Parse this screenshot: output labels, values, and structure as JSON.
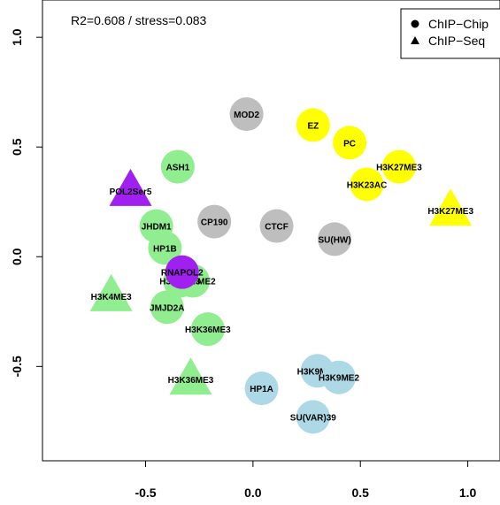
{
  "chart_data": {
    "type": "scatter",
    "title": "",
    "xlabel": "",
    "ylabel": "",
    "xlim": [
      -0.98,
      1.15
    ],
    "ylim": [
      -0.93,
      1.17
    ],
    "x_ticks": [
      "-0.5",
      "0.0",
      "0.5",
      "1.0"
    ],
    "x_tick_values": [
      -0.5,
      0.0,
      0.5,
      1.0
    ],
    "y_ticks": [
      "-0.5",
      "0.0",
      "0.5",
      "1.0"
    ],
    "y_tick_values": [
      -0.5,
      0.0,
      0.5,
      1.0
    ],
    "annotation": "R2=0.608 / stress=0.083",
    "legend": {
      "placement": "top-right",
      "entries": [
        {
          "label": "ChIP−Chip",
          "shape": "circle"
        },
        {
          "label": "ChIP−Seq",
          "shape": "triangle"
        }
      ]
    },
    "colors": {
      "green": "#90ee90",
      "grey": "#bebebe",
      "yellow": "#ffff00",
      "lightblue": "#add8e6",
      "purple": "#a020f0"
    },
    "points": [
      {
        "label": "MOD2",
        "x": -0.03,
        "y": 0.65,
        "shape": "circle",
        "color": "grey"
      },
      {
        "label": "EZ",
        "x": 0.28,
        "y": 0.6,
        "shape": "circle",
        "color": "yellow"
      },
      {
        "label": "PC",
        "x": 0.45,
        "y": 0.52,
        "shape": "circle",
        "color": "yellow"
      },
      {
        "label": "H3K27ME3",
        "x": 0.68,
        "y": 0.41,
        "shape": "circle",
        "color": "yellow"
      },
      {
        "label": "H3K23AC",
        "x": 0.53,
        "y": 0.33,
        "shape": "circle",
        "color": "yellow"
      },
      {
        "label": "H3K27ME3",
        "x": 0.92,
        "y": 0.21,
        "shape": "triangle",
        "color": "yellow"
      },
      {
        "label": "ASH1",
        "x": -0.35,
        "y": 0.41,
        "shape": "circle",
        "color": "green"
      },
      {
        "label": "POL2Ser5",
        "x": -0.57,
        "y": 0.3,
        "shape": "triangle",
        "color": "purple"
      },
      {
        "label": "CP190",
        "x": -0.18,
        "y": 0.16,
        "shape": "circle",
        "color": "grey"
      },
      {
        "label": "JHDM1",
        "x": -0.45,
        "y": 0.14,
        "shape": "circle",
        "color": "green"
      },
      {
        "label": "CTCF",
        "x": 0.11,
        "y": 0.14,
        "shape": "circle",
        "color": "grey"
      },
      {
        "label": "SU(HW)",
        "x": 0.38,
        "y": 0.08,
        "shape": "circle",
        "color": "grey"
      },
      {
        "label": "HP1B",
        "x": -0.41,
        "y": 0.04,
        "shape": "circle",
        "color": "green"
      },
      {
        "label": "H3K79ME2",
        "x": -0.28,
        "y": -0.11,
        "shape": "circle",
        "color": "green"
      },
      {
        "label": "H3K4ME3",
        "x": -0.34,
        "y": -0.11,
        "shape": "circle",
        "color": "green"
      },
      {
        "label": "RNAPOL2",
        "x": -0.33,
        "y": -0.07,
        "shape": "circle",
        "color": "purple"
      },
      {
        "label": "H3K4ME3",
        "x": -0.66,
        "y": -0.18,
        "shape": "triangle",
        "color": "green"
      },
      {
        "label": "JMJD2A",
        "x": -0.4,
        "y": -0.23,
        "shape": "circle",
        "color": "green"
      },
      {
        "label": "H3K36ME3",
        "x": -0.21,
        "y": -0.33,
        "shape": "circle",
        "color": "green"
      },
      {
        "label": "H3K9ME3",
        "x": 0.3,
        "y": -0.52,
        "shape": "circle",
        "color": "lightblue"
      },
      {
        "label": "H3K9ME2",
        "x": 0.4,
        "y": -0.55,
        "shape": "circle",
        "color": "lightblue"
      },
      {
        "label": "H3K36ME3",
        "x": -0.29,
        "y": -0.56,
        "shape": "triangle",
        "color": "green"
      },
      {
        "label": "HP1A",
        "x": 0.04,
        "y": -0.6,
        "shape": "circle",
        "color": "lightblue"
      },
      {
        "label": "SU(VAR)39",
        "x": 0.28,
        "y": -0.73,
        "shape": "circle",
        "color": "lightblue"
      }
    ]
  }
}
